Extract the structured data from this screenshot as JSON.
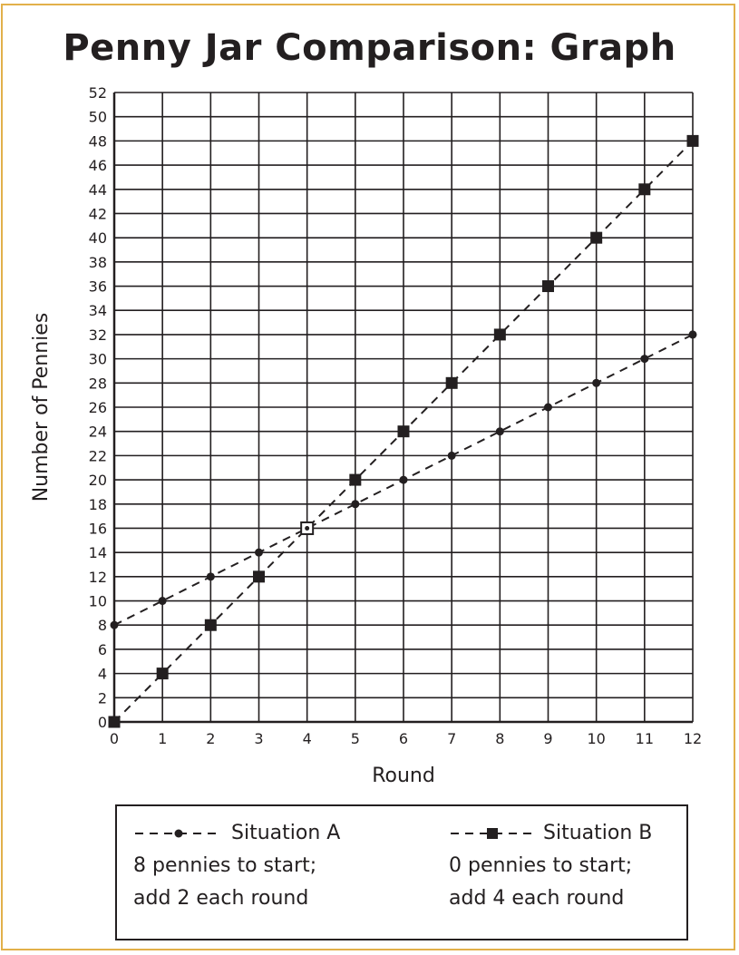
{
  "chart_data": {
    "type": "line",
    "title": "Penny Jar Comparison: Graph",
    "xlabel": "Round",
    "ylabel": "Number of Pennies",
    "xlim": [
      0,
      12
    ],
    "ylim": [
      0,
      52
    ],
    "x_ticks": [
      "0",
      "1",
      "2",
      "3",
      "4",
      "5",
      "6",
      "7",
      "8",
      "9",
      "10",
      "11",
      "12"
    ],
    "y_ticks": [
      "0",
      "2",
      "4",
      "6",
      "8",
      "10",
      "12",
      "14",
      "16",
      "18",
      "20",
      "22",
      "24",
      "26",
      "28",
      "30",
      "32",
      "34",
      "36",
      "38",
      "40",
      "42",
      "44",
      "46",
      "48",
      "50",
      "52"
    ],
    "grid": true,
    "x": [
      0,
      1,
      2,
      3,
      4,
      5,
      6,
      7,
      8,
      9,
      10,
      11,
      12
    ],
    "series": [
      {
        "name": "Situation A",
        "marker": "circle",
        "line": "dashed",
        "values": [
          8,
          10,
          12,
          14,
          16,
          18,
          20,
          22,
          24,
          26,
          28,
          30,
          32
        ]
      },
      {
        "name": "Situation B",
        "marker": "square",
        "line": "dashed",
        "values": [
          0,
          4,
          8,
          12,
          16,
          20,
          24,
          28,
          32,
          36,
          40,
          44,
          48
        ]
      }
    ],
    "intersection": {
      "x": 4,
      "y": 16
    }
  },
  "legend": {
    "a": {
      "name": "Situation A",
      "line1": "8 pennies to start;",
      "line2": "add 2 each round"
    },
    "b": {
      "name": "Situation B",
      "line1": "0 pennies to start;",
      "line2": "add 4 each round"
    }
  },
  "colors": {
    "ink": "#231f20",
    "frame": "#e2b04a"
  }
}
